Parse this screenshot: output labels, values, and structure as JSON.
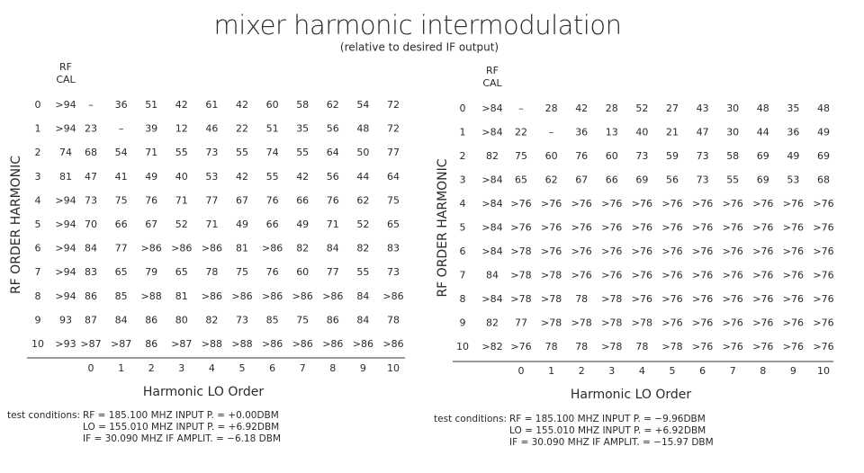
{
  "title": "mixer harmonic intermodulation",
  "subtitle": "(relative to desired IF output)",
  "tables": [
    {
      "rf_cal_label": [
        "RF",
        "CAL"
      ],
      "y_label": "RF ORDER HARMONIC",
      "x_label": "Harmonic LO Order",
      "column_headers": [
        0,
        1,
        2,
        3,
        4,
        5,
        6,
        7,
        8,
        9,
        10
      ],
      "rows": [
        {
          "order": 0,
          "cells": [
            ">94",
            "–",
            "36",
            "51",
            "42",
            "61",
            "42",
            "60",
            "58",
            "62",
            "54",
            "72"
          ]
        },
        {
          "order": 1,
          "cells": [
            ">94",
            "23",
            "–",
            "39",
            "12",
            "46",
            "22",
            "51",
            "35",
            "56",
            "48",
            "72"
          ]
        },
        {
          "order": 2,
          "cells": [
            "74",
            "68",
            "54",
            "71",
            "55",
            "73",
            "55",
            "74",
            "55",
            "64",
            "50",
            "77"
          ]
        },
        {
          "order": 3,
          "cells": [
            "81",
            "47",
            "41",
            "49",
            "40",
            "53",
            "42",
            "55",
            "42",
            "56",
            "44",
            "64"
          ]
        },
        {
          "order": 4,
          "cells": [
            ">94",
            "73",
            "75",
            "76",
            "71",
            "77",
            "67",
            "76",
            "66",
            "76",
            "62",
            "75"
          ]
        },
        {
          "order": 5,
          "cells": [
            ">94",
            "70",
            "66",
            "67",
            "52",
            "71",
            "49",
            "66",
            "49",
            "71",
            "52",
            "65"
          ]
        },
        {
          "order": 6,
          "cells": [
            ">94",
            "84",
            "77",
            ">86",
            ">86",
            ">86",
            "81",
            ">86",
            "82",
            "84",
            "82",
            "83"
          ]
        },
        {
          "order": 7,
          "cells": [
            ">94",
            "83",
            "65",
            "79",
            "65",
            "78",
            "75",
            "76",
            "60",
            "77",
            "55",
            "73"
          ]
        },
        {
          "order": 8,
          "cells": [
            ">94",
            "86",
            "85",
            ">88",
            "81",
            ">86",
            ">86",
            ">86",
            ">86",
            ">86",
            "84",
            ">86"
          ]
        },
        {
          "order": 9,
          "cells": [
            "93",
            "87",
            "84",
            "86",
            "80",
            "82",
            "73",
            "85",
            "75",
            "86",
            "84",
            "78"
          ]
        },
        {
          "order": 10,
          "cells": [
            ">93",
            ">87",
            ">87",
            "86",
            ">87",
            ">88",
            ">88",
            ">86",
            ">86",
            ">86",
            ">86",
            ">86"
          ]
        }
      ],
      "test_conditions": {
        "label": "test conditions:",
        "lines": [
          "RF = 185.100 MHZ INPUT P. = +0.00DBM",
          "LO = 155.010 MHZ INPUT P. = +6.92DBM",
          "IF = 30.090 MHZ IF AMPLIT. = −6.18 DBM"
        ]
      }
    },
    {
      "rf_cal_label": [
        "RF",
        "CAL"
      ],
      "y_label": "RF ORDER HARMONIC",
      "x_label": "Harmonic LO Order",
      "column_headers": [
        0,
        1,
        2,
        3,
        4,
        5,
        6,
        7,
        8,
        9,
        10
      ],
      "rows": [
        {
          "order": 0,
          "cells": [
            ">84",
            "–",
            "28",
            "42",
            "28",
            "52",
            "27",
            "43",
            "30",
            "48",
            "35",
            "48"
          ]
        },
        {
          "order": 1,
          "cells": [
            ">84",
            "22",
            "–",
            "36",
            "13",
            "40",
            "21",
            "47",
            "30",
            "44",
            "36",
            "49"
          ]
        },
        {
          "order": 2,
          "cells": [
            "82",
            "75",
            "60",
            "76",
            "60",
            "73",
            "59",
            "73",
            "58",
            "69",
            "49",
            "69"
          ]
        },
        {
          "order": 3,
          "cells": [
            ">84",
            "65",
            "62",
            "67",
            "66",
            "69",
            "56",
            "73",
            "55",
            "69",
            "53",
            "68"
          ]
        },
        {
          "order": 4,
          "cells": [
            ">84",
            ">76",
            ">76",
            ">76",
            ">76",
            ">76",
            ">76",
            ">76",
            ">76",
            ">76",
            ">76",
            ">76"
          ]
        },
        {
          "order": 5,
          "cells": [
            ">84",
            ">76",
            ">76",
            ">76",
            ">76",
            ">76",
            ">76",
            ">76",
            ">76",
            ">76",
            ">76",
            ">76"
          ]
        },
        {
          "order": 6,
          "cells": [
            ">84",
            ">78",
            ">76",
            ">76",
            ">76",
            ">76",
            ">76",
            ">76",
            ">76",
            ">76",
            ">76",
            ">76"
          ]
        },
        {
          "order": 7,
          "cells": [
            "84",
            ">78",
            ">78",
            ">76",
            ">76",
            ">76",
            ">76",
            ">76",
            ">76",
            ">76",
            ">76",
            ">76"
          ]
        },
        {
          "order": 8,
          "cells": [
            ">84",
            ">78",
            ">78",
            "78",
            ">78",
            ">76",
            ">76",
            ">76",
            ">76",
            ">76",
            ">76",
            ">76"
          ]
        },
        {
          "order": 9,
          "cells": [
            "82",
            "77",
            ">78",
            ">78",
            ">78",
            ">78",
            ">76",
            ">76",
            ">76",
            ">76",
            ">76",
            ">76"
          ]
        },
        {
          "order": 10,
          "cells": [
            ">82",
            ">76",
            "78",
            "78",
            ">78",
            "78",
            ">78",
            ">76",
            ">76",
            ">76",
            ">76",
            ">76"
          ]
        }
      ],
      "test_conditions": {
        "label": "test conditions:",
        "lines": [
          "RF = 185.100 MHZ INPUT P. = −9.96DBM",
          "LO = 155.010 MHZ INPUT P. = +6.92DBM",
          "IF = 30.090 MHZ IF AMPLIT. = −15.97 DBM"
        ]
      }
    }
  ]
}
